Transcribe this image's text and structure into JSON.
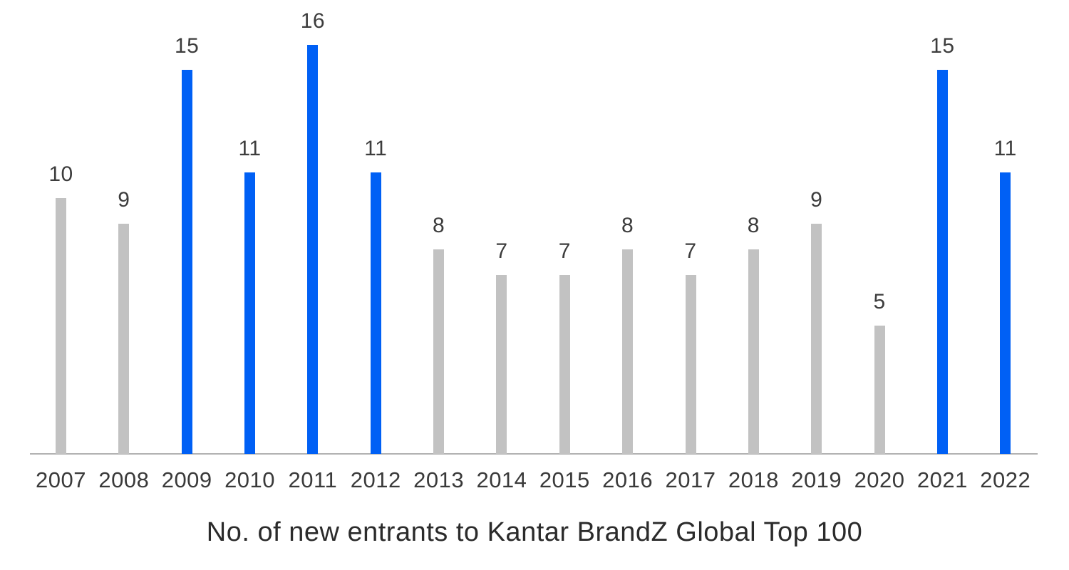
{
  "chart_data": {
    "type": "bar",
    "title": "No. of new entrants to Kantar BrandZ Global Top 100",
    "categories": [
      "2007",
      "2008",
      "2009",
      "2010",
      "2011",
      "2012",
      "2013",
      "2014",
      "2015",
      "2016",
      "2017",
      "2018",
      "2019",
      "2020",
      "2021",
      "2022"
    ],
    "values": [
      10,
      9,
      15,
      11,
      16,
      11,
      8,
      7,
      7,
      8,
      7,
      8,
      9,
      5,
      15,
      11
    ],
    "highlighted_categories": [
      "2009",
      "2010",
      "2011",
      "2012",
      "2021",
      "2022"
    ],
    "data_labels_shown": true,
    "xlabel": "",
    "ylabel": "",
    "ylim": [
      0,
      16
    ],
    "grid": false,
    "legend": "none",
    "y_axis_shown": false
  },
  "colors": {
    "bar_default": "#C2C2C2",
    "bar_highlight": "#0060F5",
    "axis_line": "#B2B2B2",
    "data_label_text": "#3D3D3D",
    "tick_label_text": "#3A3A3A",
    "title_text": "#2B2B2B",
    "background": "#FFFFFF"
  }
}
